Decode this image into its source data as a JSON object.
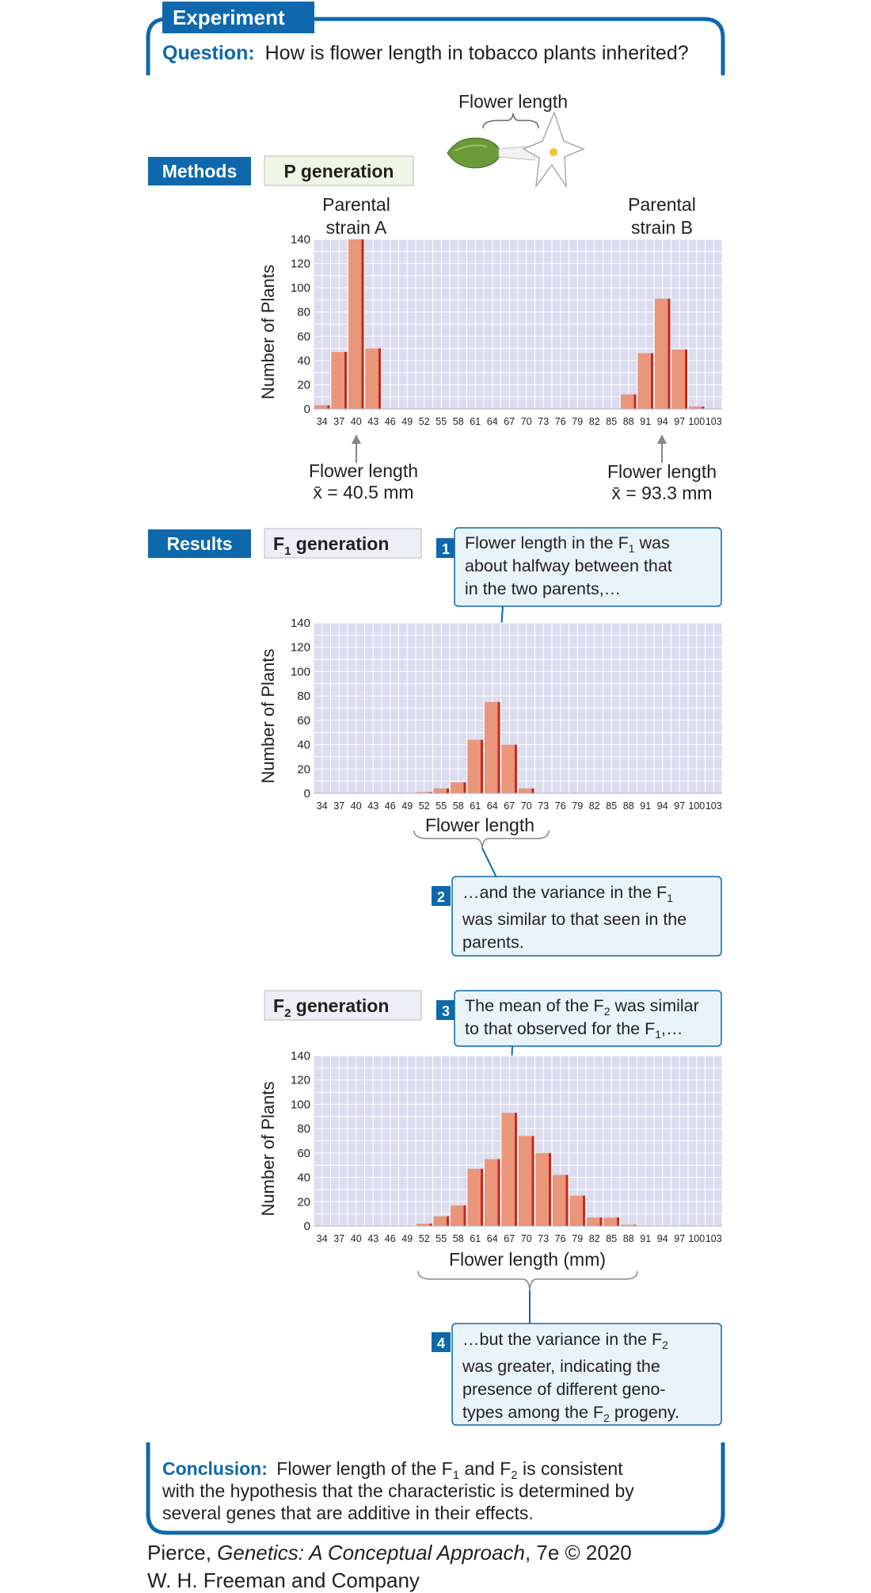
{
  "header": {
    "tag": "Experiment",
    "question_label": "Question:",
    "question_text": "How is flower length in tobacco plants inherited?"
  },
  "illustration": {
    "label": "Flower length"
  },
  "sections": {
    "methods": "Methods",
    "results": "Results",
    "p_generation": "P generation",
    "f1_generation": [
      "F",
      "1",
      " generation"
    ],
    "f2_generation": [
      "F",
      "2",
      " generation"
    ]
  },
  "parents": {
    "a_label": [
      "Parental",
      "strain A"
    ],
    "b_label": [
      "Parental",
      "strain B"
    ],
    "a_mean": [
      "Flower length",
      "x̄ = 40.5 mm"
    ],
    "b_mean": [
      "Flower length",
      "x̄ = 93.3 mm"
    ]
  },
  "callouts": [
    {
      "num": "1",
      "lines": [
        [
          "Flower length in the F",
          "1",
          " was"
        ],
        [
          "about halfway between that"
        ],
        [
          "in the two parents,…"
        ]
      ]
    },
    {
      "num": "2",
      "lines": [
        [
          "…and the variance in the F",
          "1",
          ""
        ],
        [
          "was similar to that seen in the"
        ],
        [
          "parents."
        ]
      ]
    },
    {
      "num": "3",
      "lines": [
        [
          "The mean of the F",
          "2",
          " was similar"
        ],
        [
          "to that observed for the F",
          "1",
          ",…"
        ]
      ]
    },
    {
      "num": "4",
      "lines": [
        [
          "…but the variance in the F",
          "2",
          ""
        ],
        [
          "was greater, indicating the"
        ],
        [
          "presence of different geno-"
        ],
        [
          "types among the F",
          "2",
          " progeny."
        ]
      ]
    }
  ],
  "axis_labels": {
    "f1_x": "Flower length",
    "f2_x": "Flower length (mm)"
  },
  "conclusion": {
    "label": "Conclusion:",
    "lines": [
      [
        "Flower length of the F",
        "1",
        " and F",
        "2",
        " is consistent"
      ],
      [
        "with the hypothesis that the characteristic is determined by"
      ],
      [
        "several genes that are additive in their effects."
      ]
    ]
  },
  "credit": {
    "line1_a": "Pierce, ",
    "line1_i": "Genetics: A Conceptual Approach",
    "line1_b": ", 7e © 2020",
    "line2": "W. H. Freeman and Company"
  },
  "colors": {
    "blue": "#0e68ab",
    "bar": "#e9967a",
    "bar_edge": "#c8281e",
    "plot_bg": "#dcdcee",
    "callout_bg": "#e8f3fa"
  },
  "chart_data": [
    {
      "type": "bar",
      "name": "P generation",
      "categories": [
        34,
        37,
        40,
        43,
        46,
        49,
        52,
        55,
        58,
        61,
        64,
        67,
        70,
        73,
        76,
        79,
        82,
        85,
        88,
        91,
        94,
        97,
        100,
        103
      ],
      "ylabel": "Number of Plants",
      "ylim": [
        0,
        140
      ],
      "yticks": [
        0,
        20,
        40,
        60,
        80,
        100,
        120,
        140
      ],
      "series": [
        {
          "name": "Parental strain A",
          "bars": [
            [
              34,
              3
            ],
            [
              37,
              47
            ],
            [
              40,
              140
            ],
            [
              43,
              50
            ]
          ]
        },
        {
          "name": "Parental strain B",
          "bars": [
            [
              88,
              12
            ],
            [
              91,
              46
            ],
            [
              94,
              91
            ],
            [
              97,
              49
            ],
            [
              100,
              2
            ]
          ]
        }
      ]
    },
    {
      "type": "bar",
      "name": "F1 generation",
      "categories": [
        34,
        37,
        40,
        43,
        46,
        49,
        52,
        55,
        58,
        61,
        64,
        67,
        70,
        73,
        76,
        79,
        82,
        85,
        88,
        91,
        94,
        97,
        100,
        103
      ],
      "ylabel": "Number of Plants",
      "xlabel": "Flower length",
      "ylim": [
        0,
        140
      ],
      "yticks": [
        0,
        20,
        40,
        60,
        80,
        100,
        120,
        140
      ],
      "series": [
        {
          "bars": [
            [
              52,
              1
            ],
            [
              55,
              4
            ],
            [
              58,
              9
            ],
            [
              61,
              44
            ],
            [
              64,
              75
            ],
            [
              67,
              40
            ],
            [
              70,
              4
            ]
          ]
        }
      ]
    },
    {
      "type": "bar",
      "name": "F2 generation",
      "categories": [
        34,
        37,
        40,
        43,
        46,
        49,
        52,
        55,
        58,
        61,
        64,
        67,
        70,
        73,
        76,
        79,
        82,
        85,
        88,
        91,
        94,
        97,
        100,
        103
      ],
      "ylabel": "Number of Plants",
      "xlabel": "Flower length (mm)",
      "ylim": [
        0,
        140
      ],
      "yticks": [
        0,
        20,
        40,
        60,
        80,
        100,
        120,
        140
      ],
      "series": [
        {
          "bars": [
            [
              52,
              2
            ],
            [
              55,
              8
            ],
            [
              58,
              17
            ],
            [
              61,
              47
            ],
            [
              64,
              55
            ],
            [
              67,
              93
            ],
            [
              70,
              74
            ],
            [
              73,
              60
            ],
            [
              76,
              42
            ],
            [
              79,
              25
            ],
            [
              82,
              7
            ],
            [
              85,
              7
            ],
            [
              88,
              1
            ]
          ]
        }
      ]
    }
  ]
}
